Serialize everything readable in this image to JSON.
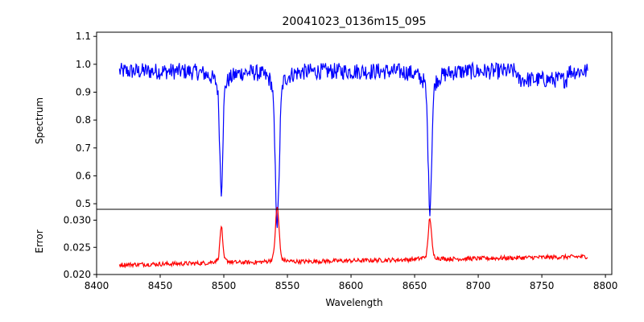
{
  "chart_data": [
    {
      "type": "line",
      "panel": "spectrum",
      "title": "20041023_0136m15_095",
      "xlabel": "",
      "ylabel": "Spectrum",
      "xlim": [
        8400,
        8805
      ],
      "ylim": [
        0.48,
        1.115
      ],
      "yticks": [
        0.5,
        0.6,
        0.7,
        0.8,
        0.9,
        1.0,
        1.1
      ],
      "ytick_labels": [
        "0.5",
        "0.6",
        "0.7",
        "0.8",
        "0.9",
        "1.0",
        "1.1"
      ],
      "color": "#0000ff",
      "series": [
        {
          "x_start": 8418,
          "x_end": 8786,
          "continuum": 0.975,
          "noise_amplitude": 0.03,
          "absorption_lines": [
            {
              "center": 8498,
              "min": 0.63,
              "width": 1.2
            },
            {
              "center": 8542,
              "min": 0.51,
              "width": 1.6
            },
            {
              "center": 8662,
              "min": 0.565,
              "width": 1.4
            }
          ]
        }
      ],
      "grid": false,
      "legend": "none"
    },
    {
      "type": "line",
      "panel": "error",
      "title": "",
      "xlabel": "Wavelength",
      "ylabel": "Error",
      "xlim": [
        8400,
        8805
      ],
      "ylim": [
        0.02,
        0.032
      ],
      "yticks": [
        0.02,
        0.025,
        0.03
      ],
      "ytick_labels": [
        "0.020",
        "0.025",
        "0.030"
      ],
      "xticks": [
        8400,
        8450,
        8500,
        8550,
        8600,
        8650,
        8700,
        8750,
        8800
      ],
      "xtick_labels": [
        "8400",
        "8450",
        "8500",
        "8550",
        "8600",
        "8650",
        "8700",
        "8750",
        "8800"
      ],
      "color": "#ff0000",
      "series": [
        {
          "x_start": 8418,
          "x_end": 8786,
          "baseline_start": 0.0218,
          "baseline_end": 0.0233,
          "noise_amplitude": 0.0004,
          "emission_peaks": [
            {
              "center": 8498,
              "max": 0.0278,
              "width": 1.0
            },
            {
              "center": 8542,
              "max": 0.0312,
              "width": 1.4
            },
            {
              "center": 8662,
              "max": 0.0293,
              "width": 1.2
            }
          ]
        }
      ],
      "grid": false,
      "legend": "none"
    }
  ]
}
